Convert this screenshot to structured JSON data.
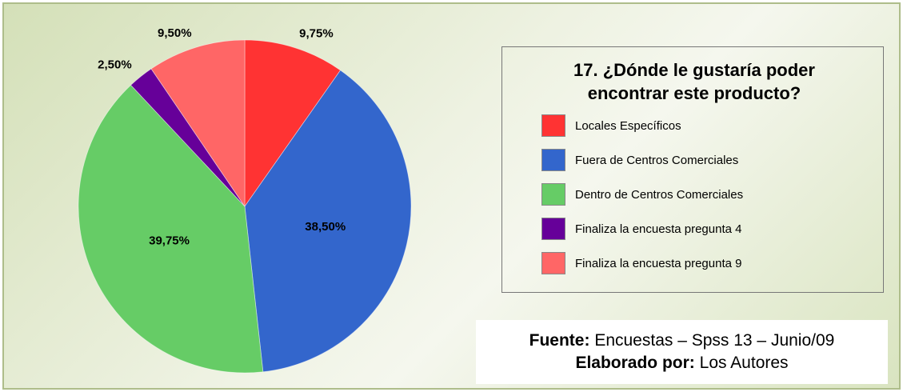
{
  "chart_data": {
    "type": "pie",
    "title": "17. ¿Dónde le gustaría poder encontrar este producto?",
    "categories": [
      "Locales Específicos",
      "Fuera de Centros Comerciales",
      "Dentro de Centros Comerciales",
      "Finaliza la encuesta pregunta 4",
      "Finaliza la encuesta pregunta 9"
    ],
    "values": [
      9.75,
      38.5,
      39.75,
      2.5,
      9.5
    ],
    "value_labels": [
      "9,75%",
      "38,50%",
      "39,75%",
      "2,50%",
      "9,50%"
    ],
    "colors": [
      "#ff3333",
      "#3366cc",
      "#66cc66",
      "#660099",
      "#ff6666"
    ]
  },
  "source": {
    "label": "Fuente:",
    "text": "Encuestas – Spss 13 – Junio/09"
  },
  "author": {
    "label": "Elaborado por:",
    "text": "Los Autores"
  }
}
